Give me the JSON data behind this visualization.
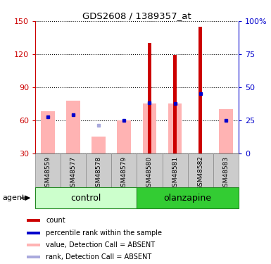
{
  "title": "GDS2608 / 1389357_at",
  "samples": [
    "GSM48559",
    "GSM48577",
    "GSM48578",
    "GSM48579",
    "GSM48580",
    "GSM48581",
    "GSM48582",
    "GSM48583"
  ],
  "red_bars": [
    0,
    0,
    0,
    0,
    130,
    119,
    145,
    0
  ],
  "pink_bars": [
    68,
    78,
    45,
    60,
    75,
    75,
    0,
    70
  ],
  "blue_squares": [
    63,
    65,
    0,
    60,
    76,
    75,
    84,
    60
  ],
  "light_blue_squares": [
    0,
    0,
    55,
    0,
    0,
    0,
    0,
    0
  ],
  "ylim_min": 30,
  "ylim_max": 150,
  "yticks": [
    30,
    60,
    90,
    120,
    150
  ],
  "y2ticks": [
    0,
    25,
    50,
    75,
    100
  ],
  "y2ticklabels": [
    "0",
    "25",
    "50",
    "75",
    "100%"
  ],
  "color_red": "#cc0000",
  "color_pink": "#ffb3b3",
  "color_blue": "#0000cc",
  "color_lightblue": "#aaaadd",
  "color_control_light": "#ccffcc",
  "color_olanzapine_dark": "#33cc33",
  "color_sample_bg": "#cccccc",
  "pink_bar_width": 0.55,
  "red_bar_width": 0.12,
  "legend_items": [
    {
      "color": "#cc0000",
      "label": "count"
    },
    {
      "color": "#0000cc",
      "label": "percentile rank within the sample"
    },
    {
      "color": "#ffb3b3",
      "label": "value, Detection Call = ABSENT"
    },
    {
      "color": "#aaaadd",
      "label": "rank, Detection Call = ABSENT"
    }
  ]
}
